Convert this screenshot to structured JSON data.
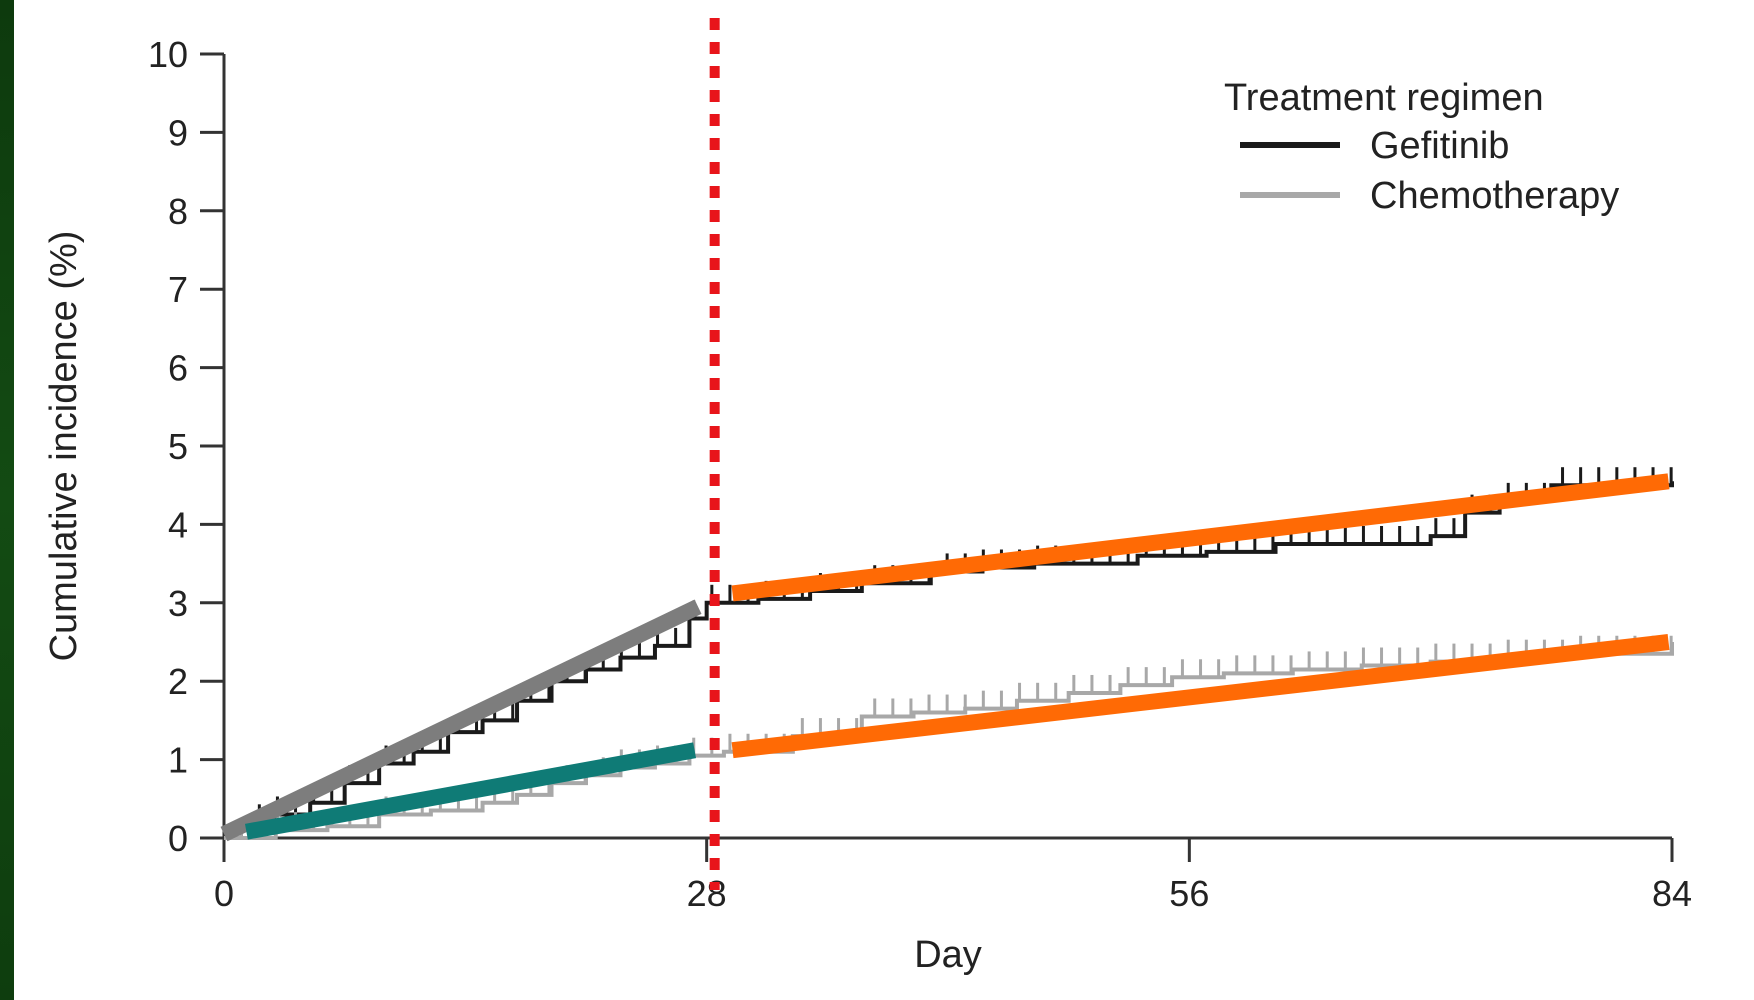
{
  "chart_data": {
    "type": "line",
    "xlabel": "Day",
    "ylabel": "Cumulative incidence (%)",
    "xlim": [
      0,
      84
    ],
    "ylim": [
      0,
      10
    ],
    "x_ticks": [
      0,
      28,
      56,
      84
    ],
    "y_ticks": [
      0,
      1,
      2,
      3,
      4,
      5,
      6,
      7,
      8,
      9,
      10
    ],
    "grid": false,
    "legend": {
      "title": "Treatment regimen",
      "placement": "top-right",
      "entries": [
        {
          "name": "Gefitinib",
          "color": "#1a1a1a"
        },
        {
          "name": "Chemotherapy",
          "color": "#a8a8a8"
        }
      ]
    },
    "series": [
      {
        "name": "Gefitinib",
        "color": "#1a1a1a",
        "style": "step",
        "x": [
          0,
          2,
          3,
          5,
          7,
          9,
          11,
          13,
          15,
          17,
          19,
          21,
          23,
          25,
          27,
          28,
          31,
          34,
          37,
          41,
          44,
          47,
          51,
          53,
          57,
          61,
          65,
          69,
          70,
          72,
          74,
          77,
          84
        ],
        "y": [
          0,
          0.2,
          0.3,
          0.45,
          0.7,
          0.95,
          1.1,
          1.35,
          1.5,
          1.75,
          2.0,
          2.15,
          2.3,
          2.45,
          2.8,
          3.0,
          3.05,
          3.15,
          3.25,
          3.4,
          3.45,
          3.5,
          3.5,
          3.6,
          3.65,
          3.75,
          3.75,
          3.75,
          3.85,
          4.15,
          4.3,
          4.5,
          4.55
        ]
      },
      {
        "name": "Chemotherapy",
        "color": "#a8a8a8",
        "style": "step",
        "x": [
          0,
          3,
          6,
          9,
          12,
          15,
          17,
          19,
          21,
          23,
          25,
          27,
          29,
          33,
          37,
          40,
          43,
          46,
          49,
          52,
          55,
          58,
          62,
          66,
          70,
          74,
          78,
          84
        ],
        "y": [
          0,
          0.1,
          0.15,
          0.3,
          0.35,
          0.45,
          0.55,
          0.7,
          0.8,
          0.9,
          0.95,
          1.05,
          1.1,
          1.3,
          1.55,
          1.6,
          1.65,
          1.75,
          1.85,
          1.95,
          2.05,
          2.1,
          2.15,
          2.2,
          2.25,
          2.3,
          2.35,
          2.5
        ]
      }
    ],
    "annotations": {
      "vertical_line": {
        "x": 28,
        "color": "#e8151b",
        "style": "dotted"
      },
      "trend_lines": [
        {
          "color": "#7d7d7d",
          "x": [
            0,
            27.5
          ],
          "y": [
            0.05,
            2.95
          ]
        },
        {
          "color": "#0f7b76",
          "x": [
            1.3,
            27.3
          ],
          "y": [
            0.08,
            1.12
          ]
        },
        {
          "color": "#ff6a05",
          "x": [
            29.5,
            83.8
          ],
          "y": [
            3.12,
            4.55
          ]
        },
        {
          "color": "#ff6a05",
          "x": [
            29.5,
            83.8
          ],
          "y": [
            1.12,
            2.5
          ]
        }
      ]
    }
  }
}
